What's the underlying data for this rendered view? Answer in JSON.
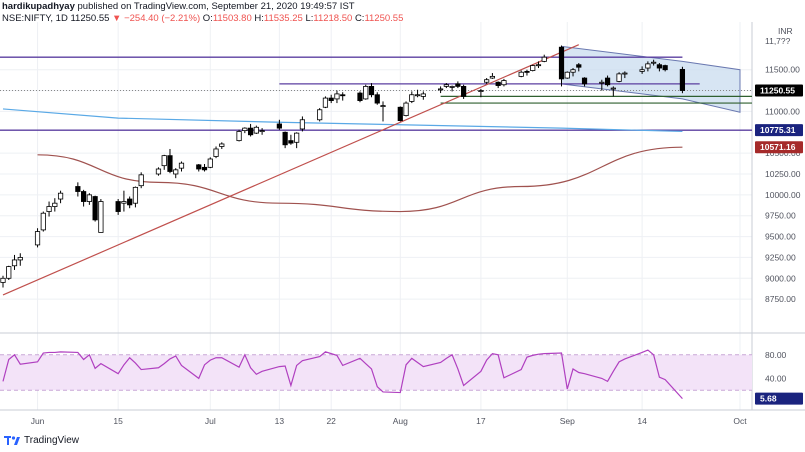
{
  "header": {
    "user": "hardikupadhyay",
    "published_text": "published on TradingView.com, September 21, 2020 19:49:57 IST",
    "symbol": "NSE:NIFTY, 1D",
    "last": "11250.55",
    "change_arrow": "▼",
    "change": "−254.40 (−2.21%)",
    "open_label": "O:",
    "open": "11503.80",
    "high_label": "H:",
    "high": "11535.25",
    "low_label": "L:",
    "low": "11218.50",
    "close_label": "C:",
    "close": "11250.55"
  },
  "brand": {
    "name": "TradingView",
    "icon": "tradingview-logo-icon"
  },
  "colors": {
    "bullish": "#ffffff",
    "bearish": "#000000",
    "candle_outline": "#000000",
    "trendline": "#c0504d",
    "ma_long": "#5aa9e6",
    "ma_mid": "#a0524f",
    "horizontal_level": "#5b3fa0",
    "support_level": "#2f5f2f",
    "channel_fill": "#c9dcef",
    "channel_stroke": "#6a78b0",
    "rsi_line": "#b040c0",
    "rsi_band": "#f3e3f8",
    "tag_price": "#000000",
    "tag_ma_long": "#1a237e",
    "tag_ma_mid": "#a52a2a",
    "tag_rsi": "#1a237e"
  },
  "price_tags": {
    "unit": "INR",
    "last": "11250.55",
    "level": "10775.31",
    "ma_mid": "10571.16",
    "rsi": "5.68",
    "partial_top": "11,7??"
  },
  "chart_data": {
    "type": "candlestick",
    "panes": [
      "price",
      "rsi"
    ],
    "ylim": [
      8500,
      12000
    ],
    "yticks": [
      8750,
      9000,
      9250,
      9500,
      9750,
      10000,
      10250,
      10500,
      11000,
      11250,
      11500
    ],
    "yticks_labels": [
      "8750.00",
      "9000.00",
      "9250.00",
      "9500.00",
      "9750.00",
      "10000.00",
      "10250.00",
      "10500.00",
      "11000.00",
      "11250.00",
      "11500.00"
    ],
    "xticks": [
      "Jun",
      "15",
      "Jul",
      "13",
      "22",
      "Aug",
      "17",
      "Sep",
      "14",
      "Oct"
    ],
    "xtick_dates": [
      "2020-06-01",
      "2020-06-15",
      "2020-07-01",
      "2020-07-13",
      "2020-07-22",
      "2020-08-03",
      "2020-08-17",
      "2020-09-01",
      "2020-09-14",
      "2020-10-01"
    ],
    "dates": [
      "2020-05-26",
      "2020-05-27",
      "2020-05-28",
      "2020-05-29",
      "2020-06-01",
      "2020-06-02",
      "2020-06-03",
      "2020-06-04",
      "2020-06-05",
      "2020-06-08",
      "2020-06-09",
      "2020-06-10",
      "2020-06-11",
      "2020-06-12",
      "2020-06-15",
      "2020-06-16",
      "2020-06-17",
      "2020-06-18",
      "2020-06-19",
      "2020-06-22",
      "2020-06-23",
      "2020-06-24",
      "2020-06-25",
      "2020-06-26",
      "2020-06-29",
      "2020-06-30",
      "2020-07-01",
      "2020-07-02",
      "2020-07-03",
      "2020-07-06",
      "2020-07-07",
      "2020-07-08",
      "2020-07-09",
      "2020-07-10",
      "2020-07-13",
      "2020-07-14",
      "2020-07-15",
      "2020-07-16",
      "2020-07-17",
      "2020-07-20",
      "2020-07-21",
      "2020-07-22",
      "2020-07-23",
      "2020-07-24",
      "2020-07-27",
      "2020-07-28",
      "2020-07-29",
      "2020-07-30",
      "2020-07-31",
      "2020-08-03",
      "2020-08-04",
      "2020-08-05",
      "2020-08-06",
      "2020-08-07",
      "2020-08-10",
      "2020-08-11",
      "2020-08-12",
      "2020-08-13",
      "2020-08-14",
      "2020-08-17",
      "2020-08-18",
      "2020-08-19",
      "2020-08-20",
      "2020-08-21",
      "2020-08-24",
      "2020-08-25",
      "2020-08-26",
      "2020-08-27",
      "2020-08-28",
      "2020-08-31",
      "2020-09-01",
      "2020-09-02",
      "2020-09-03",
      "2020-09-04",
      "2020-09-07",
      "2020-09-08",
      "2020-09-09",
      "2020-09-10",
      "2020-09-11",
      "2020-09-14",
      "2020-09-15",
      "2020-09-16",
      "2020-09-17",
      "2020-09-18",
      "2020-09-21"
    ],
    "ohlc": [
      [
        8950,
        9030,
        8890,
        9000
      ],
      [
        9000,
        9150,
        8980,
        9140
      ],
      [
        9150,
        9280,
        9100,
        9220
      ],
      [
        9220,
        9300,
        9150,
        9250
      ],
      [
        9400,
        9600,
        9370,
        9560
      ],
      [
        9580,
        9800,
        9560,
        9780
      ],
      [
        9800,
        9920,
        9740,
        9860
      ],
      [
        9860,
        9960,
        9800,
        9900
      ],
      [
        9950,
        10050,
        9900,
        10020
      ],
      [
        10100,
        10150,
        9980,
        10040
      ],
      [
        10040,
        10060,
        9860,
        9920
      ],
      [
        9920,
        10020,
        9880,
        10000
      ],
      [
        9980,
        9990,
        9680,
        9700
      ],
      [
        9550,
        9950,
        9550,
        9920
      ],
      [
        9920,
        9950,
        9760,
        9800
      ],
      [
        9900,
        10050,
        9800,
        9920
      ],
      [
        9950,
        9980,
        9840,
        9880
      ],
      [
        9900,
        10100,
        9850,
        10090
      ],
      [
        10110,
        10270,
        10080,
        10240
      ],
      [
        10250,
        10330,
        10230,
        10310
      ],
      [
        10350,
        10480,
        10300,
        10470
      ],
      [
        10470,
        10550,
        10260,
        10280
      ],
      [
        10250,
        10320,
        10200,
        10300
      ],
      [
        10320,
        10400,
        10280,
        10380
      ],
      [
        10360,
        10370,
        10280,
        10310
      ],
      [
        10330,
        10370,
        10280,
        10300
      ],
      [
        10330,
        10450,
        10320,
        10430
      ],
      [
        10460,
        10580,
        10440,
        10550
      ],
      [
        10580,
        10630,
        10550,
        10610
      ],
      [
        10650,
        10780,
        10640,
        10760
      ],
      [
        10770,
        10810,
        10740,
        10800
      ],
      [
        10800,
        10850,
        10700,
        10720
      ],
      [
        10740,
        10830,
        10730,
        10810
      ],
      [
        10760,
        10800,
        10720,
        10770
      ],
      [
        10850,
        10900,
        10780,
        10800
      ],
      [
        10750,
        10760,
        10560,
        10600
      ],
      [
        10650,
        10720,
        10600,
        10620
      ],
      [
        10630,
        10750,
        10560,
        10740
      ],
      [
        10790,
        10940,
        10760,
        10900
      ],
      [
        10900,
        11040,
        10880,
        11020
      ],
      [
        11050,
        11180,
        11040,
        11160
      ],
      [
        11160,
        11200,
        11100,
        11130
      ],
      [
        11150,
        11250,
        11100,
        11210
      ],
      [
        11200,
        11230,
        11130,
        11190
      ],
      [
        11220,
        11240,
        11110,
        11130
      ],
      [
        11150,
        11320,
        11140,
        11300
      ],
      [
        11300,
        11340,
        11170,
        11200
      ],
      [
        11200,
        11230,
        11080,
        11100
      ],
      [
        11060,
        11120,
        10880,
        11070
      ],
      [
        11050,
        11060,
        10880,
        10890
      ],
      [
        10950,
        11120,
        10940,
        11100
      ],
      [
        11120,
        11240,
        11100,
        11200
      ],
      [
        11200,
        11260,
        11170,
        11200
      ],
      [
        11180,
        11240,
        11140,
        11210
      ],
      [
        11270,
        11300,
        11220,
        11270
      ],
      [
        11300,
        11340,
        11280,
        11320
      ],
      [
        11300,
        11310,
        11240,
        11300
      ],
      [
        11330,
        11360,
        11280,
        11300
      ],
      [
        11300,
        11320,
        11150,
        11180
      ],
      [
        11250,
        11270,
        11170,
        11250
      ],
      [
        11350,
        11400,
        11330,
        11380
      ],
      [
        11400,
        11460,
        11390,
        11420
      ],
      [
        11350,
        11360,
        11280,
        11310
      ],
      [
        11320,
        11390,
        11300,
        11370
      ],
      [
        11420,
        11490,
        11410,
        11470
      ],
      [
        11480,
        11500,
        11430,
        11470
      ],
      [
        11490,
        11560,
        11480,
        11550
      ],
      [
        11560,
        11600,
        11520,
        11560
      ],
      [
        11600,
        11680,
        11590,
        11650
      ],
      [
        11770,
        11790,
        11300,
        11390
      ],
      [
        11400,
        11480,
        11390,
        11470
      ],
      [
        11470,
        11520,
        11420,
        11500
      ],
      [
        11560,
        11580,
        11480,
        11530
      ],
      [
        11400,
        11410,
        11300,
        11330
      ],
      [
        11350,
        11380,
        11250,
        11350
      ],
      [
        11400,
        11430,
        11300,
        11320
      ],
      [
        11270,
        11300,
        11180,
        11280
      ],
      [
        11360,
        11470,
        11350,
        11450
      ],
      [
        11450,
        11480,
        11400,
        11460
      ],
      [
        11480,
        11540,
        11450,
        11500
      ],
      [
        11520,
        11600,
        11480,
        11570
      ],
      [
        11580,
        11620,
        11550,
        11590
      ],
      [
        11560,
        11580,
        11480,
        11520
      ],
      [
        11550,
        11560,
        11480,
        11500
      ],
      [
        11503.8,
        11535.25,
        11218.5,
        11250.55
      ]
    ],
    "moving_average_long": {
      "x": [
        "2020-05-26",
        "2020-06-15",
        "2020-07-13",
        "2020-08-03",
        "2020-08-31",
        "2020-09-21"
      ],
      "y": [
        11030,
        10920,
        10870,
        10840,
        10800,
        10760
      ]
    },
    "moving_average_mid": {
      "x": [
        "2020-06-01",
        "2020-06-22",
        "2020-07-13",
        "2020-08-03",
        "2020-08-24",
        "2020-09-21"
      ],
      "y": [
        10480,
        10150,
        9900,
        9800,
        10100,
        10571.16
      ]
    },
    "trendline": {
      "x": [
        "2020-05-26",
        "2020-09-03"
      ],
      "y": [
        8800,
        11800
      ]
    },
    "horizontal_levels": [
      11650,
      11330,
      10775.31
    ],
    "support_levels": [
      11180,
      11100
    ],
    "channel": {
      "x": [
        "2020-08-31",
        "2020-09-21",
        "2020-10-01"
      ],
      "upper": [
        11780,
        11600,
        11500
      ],
      "lower": [
        11330,
        11150,
        10990
      ]
    },
    "rsi": {
      "ylim": [
        0,
        100
      ],
      "yticks": [
        40,
        80
      ],
      "yticks_labels": [
        "40.00",
        "80.00"
      ],
      "band": [
        20,
        80
      ],
      "values": [
        35,
        72,
        80,
        64,
        68,
        83,
        84,
        84,
        85,
        84,
        72,
        80,
        57,
        65,
        48,
        63,
        75,
        66,
        55,
        58,
        65,
        73,
        78,
        62,
        40,
        63,
        71,
        75,
        75,
        59,
        80,
        58,
        47,
        52,
        60,
        61,
        28,
        62,
        70,
        77,
        85,
        82,
        79,
        62,
        74,
        65,
        56,
        26,
        17,
        16,
        63,
        74,
        67,
        60,
        67,
        74,
        80,
        56,
        28,
        52,
        71,
        82,
        80,
        41,
        55,
        76,
        79,
        81,
        82,
        83,
        22,
        56,
        50,
        48,
        40,
        35,
        52,
        68,
        73,
        84,
        88,
        80,
        42,
        38,
        5.68
      ]
    }
  }
}
